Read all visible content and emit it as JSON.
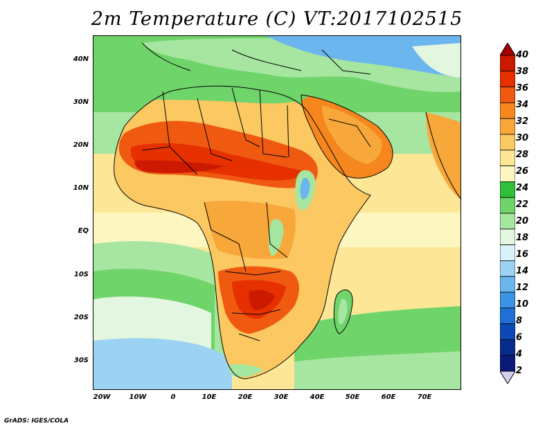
{
  "map": {
    "title": "2m Temperature (C) VT:2017102515",
    "credit": "GrADS: IGES/COLA",
    "lat_labels": [
      "40N",
      "30N",
      "20N",
      "10N",
      "EQ",
      "10S",
      "20S",
      "30S"
    ],
    "lon_labels": [
      "20W",
      "10W",
      "0",
      "10E",
      "20E",
      "30E",
      "40E",
      "50E",
      "60E",
      "70E"
    ],
    "colorbar": {
      "levels": [
        "40",
        "38",
        "36",
        "34",
        "32",
        "30",
        "28",
        "26",
        "24",
        "22",
        "20",
        "18",
        "16",
        "14",
        "12",
        "10",
        "8",
        "6",
        "4",
        "2"
      ],
      "colors": [
        "#a50000",
        "#cc1a00",
        "#e63000",
        "#f05a10",
        "#f5871e",
        "#f8a83a",
        "#fbc862",
        "#fde796",
        "#fdf6c0",
        "#2fbf3a",
        "#6fd46a",
        "#a6e6a0",
        "#e3f7e0",
        "#d9f2fa",
        "#9cd3f3",
        "#6bb6ef",
        "#3a93e5",
        "#1f6fd6",
        "#0d48b8",
        "#072c8e",
        "#0b1a78",
        "#d8d0f2"
      ]
    },
    "palette": {
      "ocean_warm": "#fde796",
      "ocean_mild": "#fdf6c0",
      "ocean_cool": "#a6e6a0",
      "ocean_cold": "#6fd46a",
      "ocean_coldest": "#e3f7e0",
      "land_hot": "#e63000",
      "land_warm": "#f5871e",
      "land_mild": "#fbc862",
      "highland_cool": "#6bb6ef",
      "border_line": "#000000"
    }
  }
}
